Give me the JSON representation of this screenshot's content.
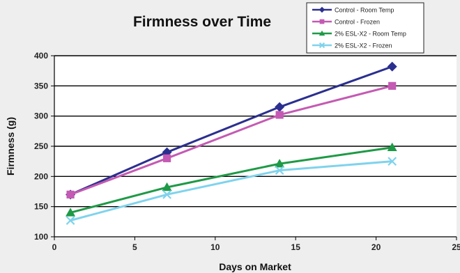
{
  "chart_data": {
    "type": "line",
    "title": "Firmness over Time",
    "xlabel": "Days on Market",
    "ylabel": "Firmness (g)",
    "xlim": [
      0,
      25
    ],
    "ylim": [
      100,
      400
    ],
    "x_ticks": [
      0,
      5,
      10,
      15,
      20,
      25
    ],
    "y_ticks": [
      100,
      150,
      200,
      250,
      300,
      350,
      400
    ],
    "grid": "horizontal",
    "legend_position": "top-right",
    "x": [
      1,
      7,
      14,
      21
    ],
    "series": [
      {
        "name": "Control - Room Temp",
        "values": [
          170,
          240,
          315,
          382
        ],
        "color": "#2b2f8f",
        "marker": "diamond"
      },
      {
        "name": "Control - Frozen",
        "values": [
          170,
          230,
          302,
          350
        ],
        "color": "#c45ab3",
        "marker": "square"
      },
      {
        "name": "2% ESL-X2 - Room Temp",
        "values": [
          140,
          182,
          221,
          248
        ],
        "color": "#1e9a46",
        "marker": "triangle"
      },
      {
        "name": "2% ESL-X2 - Frozen",
        "values": [
          127,
          170,
          210,
          225
        ],
        "color": "#7fd3ec",
        "marker": "x"
      }
    ]
  }
}
